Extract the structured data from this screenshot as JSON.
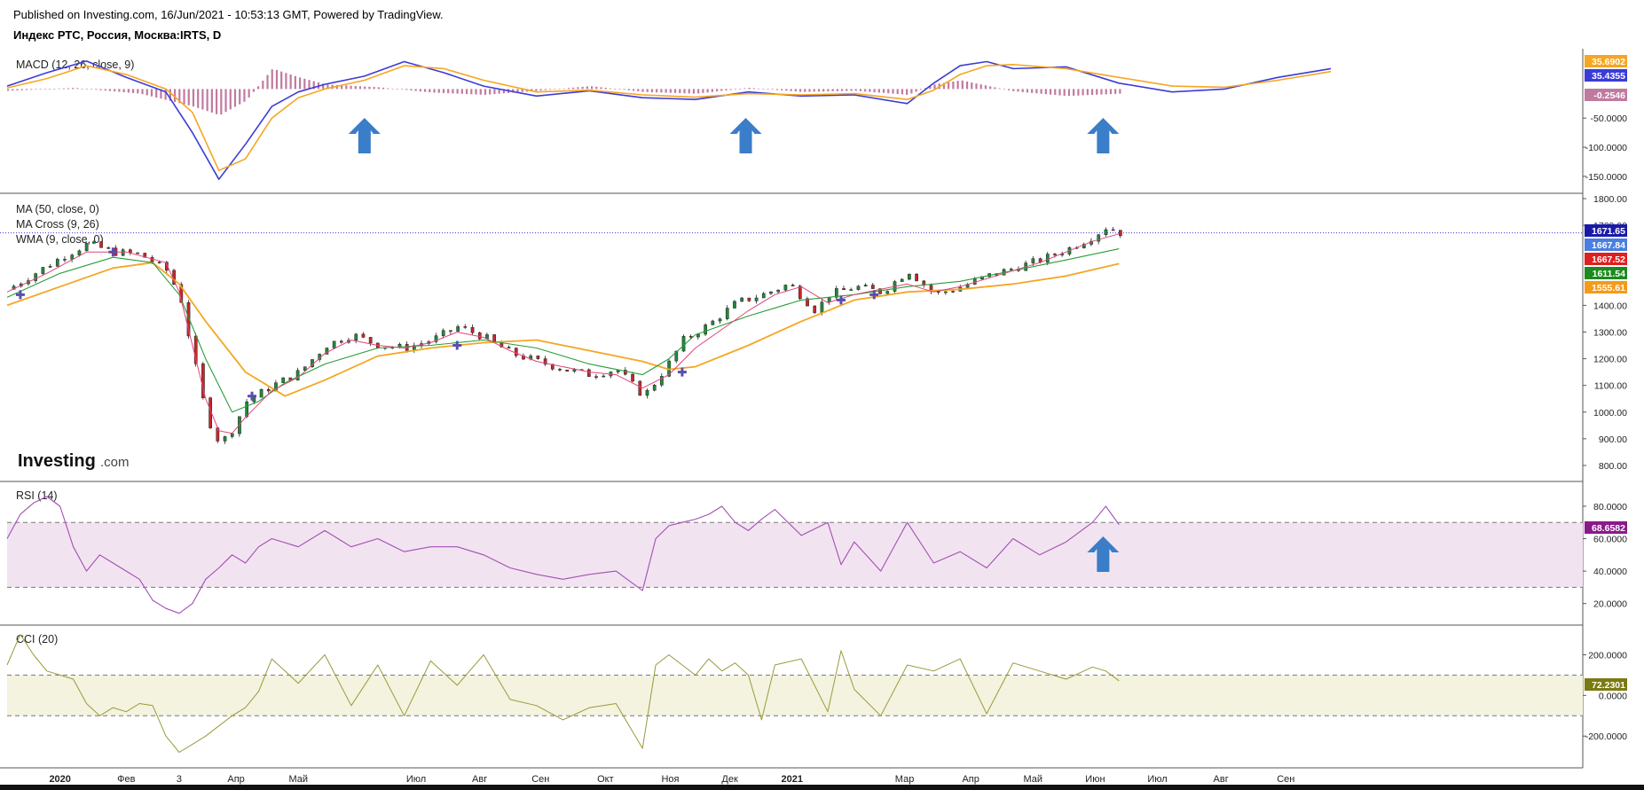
{
  "header": {
    "published": "Published on Investing.com, 16/Jun/2021 - 10:53:13 GMT, Powered by TradingView.",
    "symbol": "Индекс РТС, Россия, Москва:IRTS, D"
  },
  "watermark": {
    "brand": "Investing",
    "suffix": ".com"
  },
  "colors": {
    "macd": "#3b3bd6",
    "signal": "#f5a623",
    "hist": "#c07aa0",
    "ma50": "#f5a623",
    "wma": "#2a9d3a",
    "ma_fast": "#e0457b",
    "rsi": "#a24fb5",
    "rsi_band": "#f2e3f0",
    "cci": "#9a9a3a",
    "cci_band": "#f3f3e0",
    "up": "#1f8a3a",
    "down": "#c62828",
    "arrow": "#3a7dc8"
  },
  "chart_data": [
    {
      "id": "macd",
      "type": "line",
      "title": "MACD (12, 26, close, 9)",
      "ylim": [
        -170,
        60
      ],
      "y_ticks": [
        "-50.0000",
        "-100.0000",
        "-150.0000"
      ],
      "y_tick_values": [
        -50,
        -100,
        -150
      ],
      "series": [
        {
          "key": "macd",
          "x": [
            0,
            3,
            6,
            9,
            12,
            14,
            16,
            18,
            20,
            22,
            24,
            27,
            30,
            33,
            36,
            40,
            44,
            48,
            52,
            56,
            60,
            64,
            68,
            70,
            72,
            74,
            76,
            80,
            84,
            88,
            92,
            96,
            100
          ],
          "values": [
            5,
            28,
            48,
            20,
            -5,
            -75,
            -155,
            -95,
            -30,
            -5,
            8,
            22,
            47,
            28,
            5,
            -12,
            -3,
            -15,
            -18,
            -5,
            -12,
            -10,
            -25,
            10,
            40,
            47,
            35,
            38,
            10,
            -5,
            0,
            20,
            35
          ]
        },
        {
          "key": "signal",
          "x": [
            0,
            3,
            6,
            9,
            12,
            14,
            16,
            18,
            20,
            22,
            24,
            27,
            30,
            33,
            36,
            40,
            44,
            48,
            52,
            56,
            60,
            64,
            68,
            70,
            72,
            74,
            76,
            80,
            84,
            88,
            92,
            96,
            100
          ],
          "values": [
            2,
            18,
            40,
            25,
            0,
            -40,
            -140,
            -120,
            -50,
            -15,
            0,
            15,
            40,
            35,
            15,
            -5,
            -2,
            -10,
            -14,
            -8,
            -10,
            -8,
            -18,
            -2,
            25,
            40,
            42,
            35,
            20,
            5,
            3,
            15,
            30
          ]
        }
      ],
      "histogram": {
        "x": [
          0,
          5,
          10,
          14,
          16,
          18,
          20,
          22,
          24,
          28,
          32,
          36,
          40,
          44,
          48,
          52,
          56,
          60,
          64,
          68,
          70,
          72,
          76,
          80,
          84,
          88,
          92,
          96,
          100
        ],
        "values": [
          -3,
          2,
          -8,
          -30,
          -45,
          -20,
          35,
          20,
          8,
          3,
          -6,
          -10,
          -3,
          5,
          -5,
          -8,
          2,
          -5,
          -3,
          -10,
          8,
          15,
          -4,
          -12,
          -8,
          -4,
          0,
          -2,
          -3
        ]
      },
      "last_values": [
        "35.6902",
        "35.4355",
        "-0.2546"
      ]
    },
    {
      "id": "price",
      "type": "candlestick",
      "title_lines": [
        "MA (50, close, 0)",
        "MA Cross (9, 26)",
        "WMA (9, close, 0)"
      ],
      "ylim": [
        760,
        1800
      ],
      "y_ticks": [
        "1800.00",
        "1700.00",
        "1400.00",
        "1300.00",
        "1200.00",
        "1100.00",
        "1000.00",
        "900.00",
        "800.00"
      ],
      "y_tick_values": [
        1800,
        1700,
        1400,
        1300,
        1200,
        1100,
        1000,
        900,
        800
      ],
      "x_ticks": [
        {
          "x": 4,
          "label": "2020",
          "bold": true
        },
        {
          "x": 9,
          "label": "Фев"
        },
        {
          "x": 13,
          "label": "3"
        },
        {
          "x": 17.3,
          "label": "Апр"
        },
        {
          "x": 22,
          "label": "Май"
        },
        {
          "x": 30.9,
          "label": "Июл"
        },
        {
          "x": 35.7,
          "label": "Авг"
        },
        {
          "x": 40.3,
          "label": "Сен"
        },
        {
          "x": 45.2,
          "label": "Окт"
        },
        {
          "x": 50.1,
          "label": "Ноя"
        },
        {
          "x": 54.6,
          "label": "Дек"
        },
        {
          "x": 59.3,
          "label": "2021",
          "bold": true
        },
        {
          "x": 67.8,
          "label": "Мар"
        },
        {
          "x": 72.8,
          "label": "Апр"
        },
        {
          "x": 77.5,
          "label": "Май"
        },
        {
          "x": 82.2,
          "label": "Июн"
        },
        {
          "x": 86.9,
          "label": "Июл"
        },
        {
          "x": 91.7,
          "label": "Авг"
        },
        {
          "x": 96.6,
          "label": "Сен"
        }
      ],
      "close_path": {
        "x": [
          0,
          2,
          4,
          6,
          8,
          10,
          12,
          13,
          14,
          15,
          16,
          17,
          18,
          20,
          22,
          24,
          26,
          28,
          30,
          32,
          34,
          36,
          38,
          40,
          42,
          44,
          46,
          48,
          49,
          50,
          51,
          53,
          55,
          57,
          59,
          61,
          62,
          64,
          66,
          68,
          70,
          72,
          74,
          76,
          78,
          80,
          82,
          83,
          84
        ],
        "values": [
          1460,
          1520,
          1580,
          1630,
          1600,
          1590,
          1530,
          1430,
          1200,
          980,
          880,
          940,
          1040,
          1100,
          1150,
          1250,
          1290,
          1250,
          1240,
          1270,
          1320,
          1280,
          1220,
          1190,
          1160,
          1140,
          1160,
          1060,
          1120,
          1190,
          1270,
          1330,
          1410,
          1440,
          1480,
          1380,
          1440,
          1470,
          1450,
          1530,
          1440,
          1470,
          1510,
          1540,
          1570,
          1610,
          1660,
          1695,
          1672
        ]
      },
      "ma50": {
        "x": [
          0,
          4,
          8,
          11,
          13,
          15,
          18,
          21,
          24,
          28,
          32,
          36,
          40,
          44,
          48,
          50,
          52,
          56,
          60,
          64,
          68,
          72,
          76,
          80,
          84
        ],
        "values": [
          1400,
          1470,
          1540,
          1560,
          1480,
          1340,
          1150,
          1060,
          1120,
          1210,
          1240,
          1260,
          1270,
          1230,
          1190,
          1160,
          1170,
          1250,
          1340,
          1420,
          1450,
          1460,
          1480,
          1510,
          1556
        ]
      },
      "wma": {
        "x": [
          0,
          4,
          8,
          11,
          13,
          15,
          17,
          19,
          21,
          24,
          28,
          32,
          36,
          40,
          44,
          48,
          50,
          52,
          56,
          60,
          64,
          68,
          72,
          76,
          80,
          84
        ],
        "values": [
          1430,
          1520,
          1580,
          1560,
          1440,
          1200,
          1000,
          1040,
          1110,
          1180,
          1240,
          1250,
          1270,
          1240,
          1180,
          1140,
          1200,
          1290,
          1360,
          1420,
          1440,
          1470,
          1490,
          1530,
          1570,
          1612
        ]
      },
      "ma_fast": {
        "x": [
          0,
          3,
          6,
          9,
          12,
          13,
          14,
          15,
          16,
          17,
          18,
          20,
          22,
          24,
          26,
          28,
          30,
          32,
          34,
          36,
          38,
          40,
          42,
          44,
          46,
          48,
          50,
          52,
          54,
          56,
          58,
          60,
          62,
          64,
          66,
          68,
          70,
          72,
          74,
          76,
          78,
          80,
          82,
          84
        ],
        "values": [
          1450,
          1520,
          1600,
          1600,
          1560,
          1450,
          1250,
          1050,
          930,
          920,
          980,
          1080,
          1130,
          1220,
          1270,
          1250,
          1240,
          1260,
          1300,
          1280,
          1230,
          1190,
          1170,
          1150,
          1140,
          1090,
          1140,
          1240,
          1310,
          1380,
          1440,
          1470,
          1410,
          1440,
          1460,
          1480,
          1450,
          1470,
          1500,
          1530,
          1560,
          1600,
          1640,
          1668
        ]
      },
      "cross_markers": {
        "x": [
          1,
          8,
          18.5,
          34,
          51,
          63,
          65.5
        ],
        "values": [
          1440,
          1600,
          1060,
          1250,
          1150,
          1420,
          1440
        ]
      },
      "current_price": 1671.65,
      "last_values": [
        "1671.65",
        "1667.84",
        "1667.52",
        "1611.54",
        "1555.61"
      ]
    },
    {
      "id": "rsi",
      "type": "line",
      "title": "RSI (14)",
      "ylim": [
        10,
        92
      ],
      "y_ticks": [
        "80.0000",
        "60.0000",
        "40.0000",
        "20.0000"
      ],
      "y_tick_values": [
        80,
        60,
        40,
        20
      ],
      "band": [
        30,
        70
      ],
      "series": [
        {
          "key": "rsi",
          "x": [
            0,
            1,
            2,
            3,
            4,
            5,
            6,
            7,
            8,
            9,
            10,
            11,
            12,
            13,
            14,
            15,
            16,
            17,
            18,
            19,
            20,
            22,
            24,
            26,
            28,
            30,
            32,
            34,
            36,
            38,
            40,
            42,
            44,
            46,
            48,
            49,
            50,
            51,
            52,
            53,
            54,
            55,
            56,
            57,
            58,
            60,
            62,
            63,
            64,
            66,
            68,
            70,
            72,
            74,
            76,
            78,
            80,
            82,
            83,
            84
          ],
          "values": [
            60,
            75,
            82,
            86,
            80,
            55,
            40,
            50,
            45,
            40,
            35,
            22,
            17,
            14,
            20,
            35,
            42,
            50,
            45,
            55,
            60,
            55,
            65,
            55,
            60,
            52,
            55,
            55,
            50,
            42,
            38,
            35,
            38,
            40,
            28,
            60,
            68,
            70,
            72,
            75,
            80,
            70,
            65,
            72,
            78,
            62,
            70,
            44,
            58,
            40,
            70,
            45,
            52,
            42,
            60,
            50,
            58,
            70,
            80,
            68.66
          ]
        }
      ],
      "last_value": "68.6582"
    },
    {
      "id": "cci",
      "type": "line",
      "title": "CCI (20)",
      "ylim": [
        -330,
        320
      ],
      "y_ticks": [
        "200.0000",
        "0.0000",
        "-200.0000"
      ],
      "y_tick_values": [
        200,
        0,
        -200
      ],
      "band": [
        -100,
        100
      ],
      "series": [
        {
          "key": "cci",
          "x": [
            0,
            1,
            2,
            3,
            4,
            5,
            6,
            7,
            8,
            9,
            10,
            11,
            12,
            13,
            14,
            15,
            16,
            17,
            18,
            19,
            20,
            22,
            24,
            26,
            28,
            30,
            32,
            34,
            36,
            38,
            40,
            42,
            44,
            46,
            48,
            49,
            50,
            51,
            52,
            53,
            54,
            55,
            56,
            57,
            58,
            60,
            62,
            63,
            64,
            66,
            68,
            70,
            72,
            74,
            76,
            78,
            80,
            82,
            83,
            84
          ],
          "values": [
            150,
            300,
            200,
            120,
            100,
            80,
            -40,
            -100,
            -60,
            -80,
            -40,
            -50,
            -200,
            -280,
            -240,
            -200,
            -150,
            -100,
            -60,
            20,
            180,
            60,
            200,
            -50,
            150,
            -100,
            170,
            50,
            200,
            -20,
            -50,
            -120,
            -60,
            -40,
            -260,
            150,
            200,
            150,
            100,
            180,
            120,
            160,
            100,
            -120,
            150,
            180,
            -80,
            220,
            30,
            -100,
            150,
            120,
            180,
            -90,
            160,
            120,
            80,
            140,
            120,
            72.23
          ]
        }
      ],
      "last_value": "72.2301"
    }
  ],
  "arrows": [
    {
      "pane": "macd",
      "x": 27.0
    },
    {
      "pane": "macd",
      "x": 55.8
    },
    {
      "pane": "macd",
      "x": 82.8
    },
    {
      "pane": "rsi",
      "x": 82.8
    }
  ]
}
